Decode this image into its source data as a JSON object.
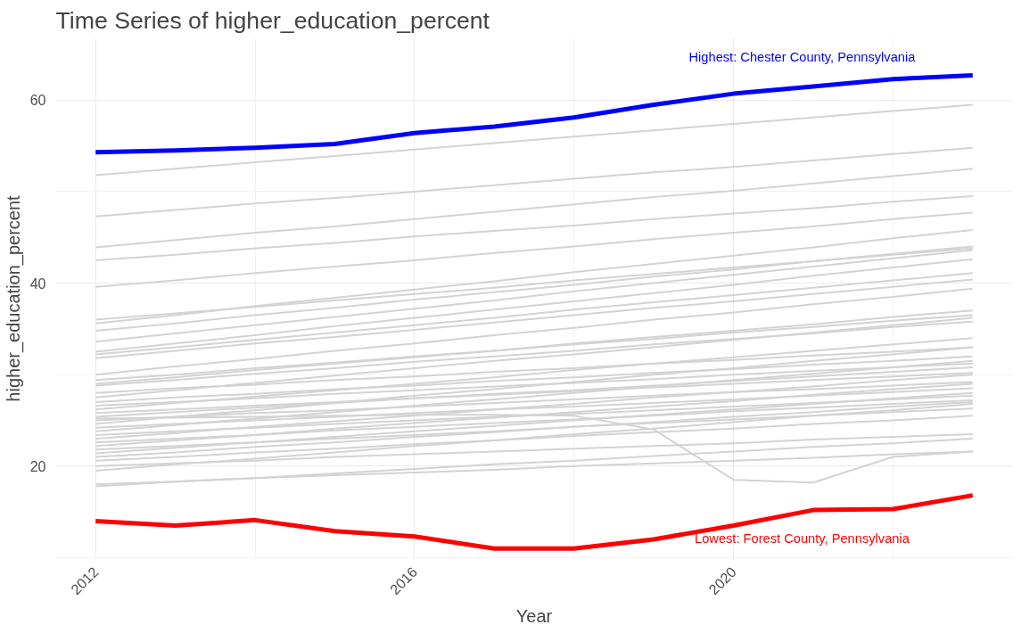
{
  "chart_data": {
    "type": "line",
    "title": "Time Series of higher_education_percent",
    "xlabel": "Year",
    "ylabel": "higher_education_percent",
    "x": [
      2012,
      2013,
      2014,
      2015,
      2016,
      2017,
      2018,
      2019,
      2020,
      2021,
      2022,
      2023
    ],
    "xlim": [
      2011.5,
      2023.5
    ],
    "xticks": [
      2012,
      2016,
      2020
    ],
    "ylim": [
      9.8,
      66.8
    ],
    "yticks": [
      20,
      40,
      60
    ],
    "grid": true,
    "marker": "none",
    "line_style": "solid",
    "series": [
      {
        "color": "#d3d3d3",
        "values": [
          51.8,
          52.5,
          53.2,
          53.9,
          54.6,
          55.3,
          56.0,
          56.7,
          57.4,
          58.1,
          58.8,
          59.5
        ]
      },
      {
        "color": "#d3d3d3",
        "values": [
          47.3,
          48.0,
          48.7,
          49.3,
          50.0,
          50.7,
          51.4,
          52.1,
          52.7,
          53.4,
          54.1,
          54.8
        ]
      },
      {
        "color": "#d3d3d3",
        "values": [
          43.9,
          44.7,
          45.5,
          46.2,
          47.0,
          47.8,
          48.6,
          49.4,
          50.1,
          50.9,
          51.7,
          52.5
        ]
      },
      {
        "color": "#d3d3d3",
        "values": [
          42.5,
          43.1,
          43.8,
          44.4,
          45.1,
          45.7,
          46.3,
          47.0,
          47.6,
          48.2,
          48.9,
          49.5
        ]
      },
      {
        "color": "#d3d3d3",
        "values": [
          39.6,
          40.3,
          41.1,
          41.8,
          42.5,
          43.3,
          44.0,
          44.8,
          45.5,
          46.2,
          47.0,
          47.7
        ]
      },
      {
        "color": "#d3d3d3",
        "values": [
          35.6,
          36.5,
          37.5,
          38.4,
          39.3,
          40.2,
          41.2,
          42.1,
          43.0,
          43.9,
          44.9,
          45.8
        ]
      },
      {
        "color": "#d3d3d3",
        "values": [
          34.8,
          35.6,
          36.5,
          37.3,
          38.2,
          39.0,
          39.8,
          40.7,
          41.5,
          42.4,
          43.2,
          44.0
        ]
      },
      {
        "color": "#d3d3d3",
        "values": [
          33.6,
          34.5,
          35.4,
          36.3,
          37.2,
          38.1,
          39.1,
          40.0,
          40.9,
          41.8,
          42.7,
          43.6
        ]
      },
      {
        "color": "#d3d3d3",
        "values": [
          32.2,
          33.0,
          33.8,
          34.6,
          35.4,
          36.2,
          37.1,
          37.9,
          38.7,
          39.5,
          40.3,
          41.1
        ]
      },
      {
        "color": "#d3d3d3",
        "values": [
          31.8,
          32.6,
          33.4,
          34.1,
          34.9,
          35.7,
          36.5,
          37.3,
          38.0,
          38.8,
          39.6,
          40.4
        ]
      },
      {
        "color": "#d3d3d3",
        "values": [
          30.0,
          30.9,
          31.7,
          32.6,
          33.4,
          34.3,
          35.1,
          36.0,
          36.8,
          37.7,
          38.5,
          39.4
        ]
      },
      {
        "color": "#d3d3d3",
        "values": [
          29.4,
          30.0,
          30.7,
          31.3,
          32.0,
          32.6,
          33.3,
          33.9,
          34.6,
          35.2,
          35.9,
          36.5
        ]
      },
      {
        "color": "#d3d3d3",
        "values": [
          28.8,
          29.4,
          30.1,
          30.7,
          31.4,
          32.0,
          32.6,
          33.3,
          33.9,
          34.5,
          35.2,
          35.8
        ]
      },
      {
        "color": "#d3d3d3",
        "values": [
          28.0,
          28.5,
          28.9,
          29.4,
          29.8,
          30.3,
          30.7,
          31.2,
          31.6,
          32.1,
          32.5,
          33.0
        ]
      },
      {
        "color": "#d3d3d3",
        "values": [
          27.5,
          28.3,
          29.1,
          29.9,
          30.7,
          31.5,
          32.2,
          33.0,
          33.8,
          34.6,
          35.4,
          36.2
        ]
      },
      {
        "color": "#d3d3d3",
        "values": [
          27.0,
          27.5,
          27.9,
          28.4,
          28.8,
          29.3,
          29.7,
          30.2,
          30.6,
          31.1,
          31.5,
          32.0
        ]
      },
      {
        "color": "#d3d3d3",
        "values": [
          26.6,
          27.0,
          27.4,
          27.9,
          28.3,
          28.7,
          29.1,
          29.5,
          30.0,
          30.4,
          30.8,
          31.2
        ]
      },
      {
        "color": "#d3d3d3",
        "values": [
          26.2,
          26.9,
          27.6,
          28.3,
          29.0,
          29.7,
          30.5,
          31.2,
          31.9,
          32.6,
          33.3,
          34.0
        ]
      },
      {
        "color": "#d3d3d3",
        "values": [
          25.8,
          26.2,
          26.6,
          27.0,
          27.4,
          27.8,
          28.2,
          28.6,
          29.0,
          29.4,
          29.8,
          30.2
        ]
      },
      {
        "color": "#d3d3d3",
        "values": [
          25.4,
          25.9,
          26.4,
          26.9,
          27.4,
          27.9,
          28.3,
          28.8,
          29.3,
          29.8,
          30.3,
          30.8
        ]
      },
      {
        "color": "#d3d3d3",
        "values": [
          25.0,
          25.4,
          25.8,
          26.1,
          26.5,
          26.9,
          27.3,
          27.7,
          28.1,
          28.4,
          28.8,
          29.2
        ]
      },
      {
        "color": "#d3d3d3",
        "values": [
          24.6,
          25.4,
          26.1,
          26.9,
          27.7,
          28.4,
          29.2,
          30.0,
          30.7,
          31.5,
          32.2,
          33.0
        ]
      },
      {
        "color": "#d3d3d3",
        "values": [
          24.2,
          24.6,
          25.0,
          25.4,
          25.8,
          26.2,
          26.5,
          26.9,
          27.3,
          27.7,
          28.1,
          28.5
        ]
      },
      {
        "color": "#d3d3d3",
        "values": [
          23.8,
          24.5,
          25.2,
          25.9,
          26.6,
          27.3,
          28.0,
          28.7,
          29.4,
          30.1,
          30.8,
          31.5
        ]
      },
      {
        "color": "#d3d3d3",
        "values": [
          23.4,
          23.8,
          24.2,
          24.6,
          25.0,
          25.4,
          25.7,
          26.1,
          26.5,
          26.9,
          27.3,
          27.7
        ]
      },
      {
        "color": "#d3d3d3",
        "values": [
          23.0,
          23.6,
          24.3,
          24.9,
          25.5,
          26.2,
          26.8,
          27.5,
          28.1,
          28.7,
          29.4,
          30.0
        ]
      },
      {
        "color": "#d3d3d3",
        "values": [
          22.6,
          23.0,
          23.4,
          23.9,
          24.3,
          24.7,
          25.1,
          25.5,
          26.0,
          26.4,
          26.8,
          27.2
        ]
      },
      {
        "color": "#d3d3d3",
        "values": [
          22.2,
          22.8,
          23.4,
          24.1,
          24.7,
          25.3,
          25.9,
          26.5,
          27.1,
          27.8,
          28.4,
          29.0
        ]
      },
      {
        "color": "#d3d3d3",
        "values": [
          21.8,
          22.2,
          22.6,
          23.0,
          23.4,
          23.8,
          24.3,
          24.7,
          25.1,
          25.5,
          25.9,
          26.3
        ]
      },
      {
        "color": "#d3d3d3",
        "values": [
          21.4,
          22.0,
          22.6,
          23.2,
          23.8,
          24.4,
          25.0,
          25.6,
          26.2,
          26.8,
          27.4,
          28.0
        ]
      },
      {
        "color": "#d3d3d3",
        "values": [
          21.0,
          21.5,
          22.1,
          22.6,
          23.2,
          23.7,
          24.3,
          24.8,
          25.4,
          25.9,
          26.5,
          27.0
        ]
      },
      {
        "color": "#d3d3d3",
        "values": [
          20.6,
          21.0,
          21.5,
          21.9,
          22.4,
          22.8,
          23.3,
          23.7,
          24.1,
          24.6,
          25.0,
          25.5
        ]
      },
      {
        "color": "#d3d3d3",
        "values": [
          20.0,
          20.3,
          20.6,
          21.0,
          21.3,
          21.6,
          21.9,
          22.2,
          22.5,
          22.9,
          23.2,
          23.5
        ]
      },
      {
        "color": "#d3d3d3",
        "values": [
          19.5,
          20.2,
          20.8,
          21.5,
          22.2,
          22.8,
          23.5,
          24.1,
          24.8,
          25.5,
          26.1,
          26.8
        ]
      },
      {
        "color": "#d3d3d3",
        "values": [
          18.0,
          18.3,
          18.7,
          19.0,
          19.3,
          19.6,
          20.0,
          20.3,
          20.6,
          20.9,
          21.3,
          21.6
        ]
      },
      {
        "color": "#d3d3d3",
        "values": [
          17.8,
          18.3,
          18.7,
          19.2,
          19.7,
          20.2,
          20.6,
          21.1,
          21.6,
          22.1,
          22.5,
          23.0
        ]
      },
      {
        "color": "#d3d3d3",
        "values": [
          25.2,
          25.3,
          25.4,
          25.5,
          25.6,
          25.6,
          25.5,
          24.0,
          18.5,
          18.2,
          21.0,
          21.6
        ]
      },
      {
        "color": "#d3d3d3",
        "values": [
          36.0,
          36.7,
          37.4,
          38.1,
          38.8,
          39.5,
          40.3,
          41.0,
          41.7,
          42.4,
          43.1,
          43.8
        ]
      },
      {
        "color": "#d3d3d3",
        "values": [
          32.5,
          33.4,
          34.3,
          35.3,
          36.2,
          37.1,
          38.0,
          38.9,
          39.8,
          40.8,
          41.7,
          42.6
        ]
      },
      {
        "color": "#d3d3d3",
        "values": [
          29.0,
          29.7,
          30.5,
          31.2,
          31.9,
          32.6,
          33.4,
          34.1,
          34.8,
          35.5,
          36.3,
          37.0
        ]
      },
      {
        "color": "#0000ff",
        "values": [
          54.3,
          54.5,
          54.8,
          55.2,
          56.4,
          57.1,
          58.1,
          59.5,
          60.7,
          61.5,
          62.3,
          62.7
        ]
      },
      {
        "color": "#ff0000",
        "values": [
          14.0,
          13.5,
          14.1,
          12.9,
          12.3,
          11.0,
          11.0,
          12.0,
          13.5,
          15.2,
          15.3,
          16.8
        ]
      }
    ],
    "annotations": [
      "Highest: Chester County, Pennsylvania",
      "Lowest: Forest County, Pennsylvania"
    ]
  }
}
